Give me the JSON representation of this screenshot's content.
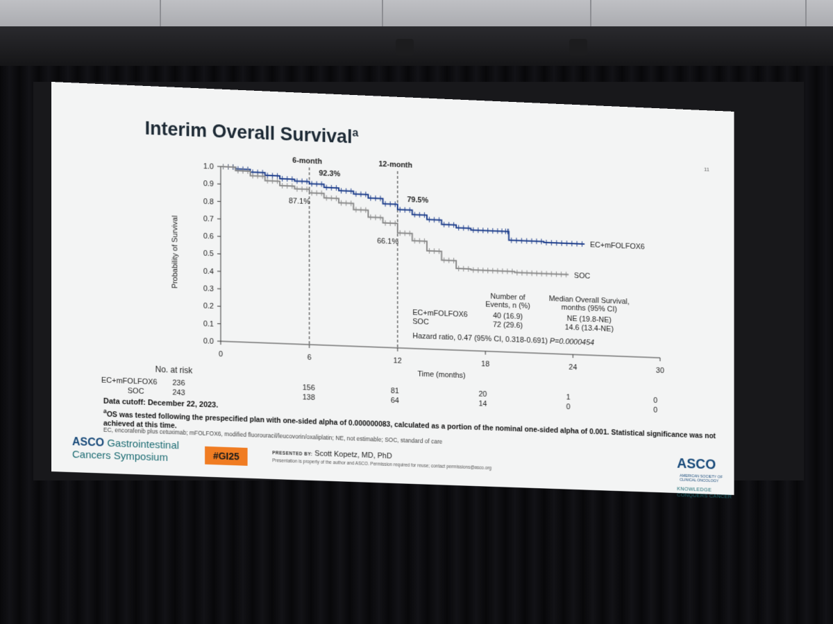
{
  "slide": {
    "title": "Interim Overall Survival",
    "title_sup": "a",
    "page_number": "11",
    "footnote_cutoff": "Data cutoff: December 22, 2023.",
    "footnote_a_sup": "a",
    "footnote_a": "OS was tested following the prespecified plan with one-sided alpha of 0.000000083, calculated as a portion of the nominal one-sided alpha of 0.001. Statistical significance was not achieved at this time.",
    "abbreviations": "EC, encorafenib plus cetuximab; mFOLFOX6, modified fluorouracil/leucovorin/oxaliplatin; NE, not estimable; SOC, standard of care",
    "asco_brand": "ASCO",
    "symposium_line1": "Gastrointestinal",
    "symposium_line2": "Cancers Symposium",
    "hashtag": "#GI25",
    "presented_label": "PRESENTED BY:",
    "presenter": "Scott Kopetz, MD, PhD",
    "rights": "Presentation is property of the author and ASCO. Permission required for reuse; contact permissions@asco.org",
    "asco_right": "ASCO",
    "asco_right_small1": "AMERICAN SOCIETY OF",
    "asco_right_small2": "CLINICAL ONCOLOGY",
    "asco_tagline": "KNOWLEDGE CONQUERS CANCER"
  },
  "chart_data": {
    "type": "line",
    "title": "",
    "xlabel": "Time (months)",
    "ylabel": "Probability of Survival",
    "xlim": [
      0,
      30
    ],
    "ylim": [
      0.0,
      1.0
    ],
    "x_ticks": [
      "0",
      "6",
      "12",
      "18",
      "24",
      "30"
    ],
    "y_ticks": [
      "0.0",
      "0.1",
      "0.2",
      "0.3",
      "0.4",
      "0.5",
      "0.6",
      "0.7",
      "0.8",
      "0.9",
      "1.0"
    ],
    "landmarks": [
      {
        "x": 6,
        "label": "6-month"
      },
      {
        "x": 12,
        "label": "12-month"
      }
    ],
    "series": [
      {
        "name": "EC+mFOLFOX6",
        "color": "#1f3f8c",
        "points": [
          [
            0,
            1.0
          ],
          [
            1,
            0.99
          ],
          [
            2,
            0.975
          ],
          [
            3,
            0.96
          ],
          [
            4,
            0.945
          ],
          [
            5,
            0.935
          ],
          [
            6,
            0.923
          ],
          [
            7,
            0.905
          ],
          [
            8,
            0.89
          ],
          [
            9,
            0.875
          ],
          [
            10,
            0.855
          ],
          [
            11,
            0.825
          ],
          [
            12,
            0.795
          ],
          [
            13,
            0.77
          ],
          [
            14,
            0.745
          ],
          [
            15,
            0.72
          ],
          [
            16,
            0.705
          ],
          [
            17,
            0.695
          ],
          [
            18,
            0.695
          ],
          [
            19,
            0.695
          ],
          [
            19.5,
            0.695
          ],
          [
            19.6,
            0.645
          ],
          [
            21,
            0.645
          ],
          [
            22,
            0.64
          ],
          [
            24.8,
            0.64
          ]
        ],
        "landmark_labels": [
          {
            "x": 6,
            "y": 0.923,
            "text": "92.3%"
          },
          {
            "x": 12,
            "y": 0.795,
            "text": "79.5%"
          }
        ]
      },
      {
        "name": "SOC",
        "color": "#8a8a8a",
        "points": [
          [
            0,
            1.0
          ],
          [
            1,
            0.98
          ],
          [
            2,
            0.955
          ],
          [
            3,
            0.93
          ],
          [
            4,
            0.905
          ],
          [
            5,
            0.89
          ],
          [
            6,
            0.871
          ],
          [
            7,
            0.845
          ],
          [
            8,
            0.82
          ],
          [
            9,
            0.785
          ],
          [
            10,
            0.745
          ],
          [
            11,
            0.715
          ],
          [
            12,
            0.661
          ],
          [
            13,
            0.62
          ],
          [
            14,
            0.565
          ],
          [
            15,
            0.515
          ],
          [
            16,
            0.47
          ],
          [
            17,
            0.465
          ],
          [
            18,
            0.465
          ],
          [
            20,
            0.46
          ],
          [
            23.7,
            0.46
          ]
        ],
        "landmark_labels": [
          {
            "x": 6,
            "y": 0.871,
            "text": "87.1%"
          },
          {
            "x": 12,
            "y": 0.661,
            "text": "66.1%"
          }
        ]
      }
    ],
    "summary_table": {
      "col1_header": [
        "Number of",
        "Events, n (%)"
      ],
      "col2_header": [
        "Median Overall Survival,",
        "months (95% CI)"
      ],
      "rows": [
        {
          "arm": "EC+mFOLFOX6",
          "events": "40 (16.9)",
          "median": "NE (19.8-NE)"
        },
        {
          "arm": "SOC",
          "events": "72 (29.6)",
          "median": "14.6 (13.4-NE)"
        }
      ],
      "hazard_ratio": "Hazard ratio, 0.47 (95% CI, 0.318-0.691) ",
      "p_value": "P=0.0000454"
    },
    "at_risk": {
      "title": "No. at risk",
      "rows": [
        {
          "arm": "EC+mFOLFOX6",
          "values": [
            "236",
            "156",
            "81",
            "20",
            "1",
            "0"
          ]
        },
        {
          "arm": "SOC",
          "values": [
            "243",
            "138",
            "64",
            "14",
            "0",
            "0"
          ]
        }
      ]
    }
  }
}
